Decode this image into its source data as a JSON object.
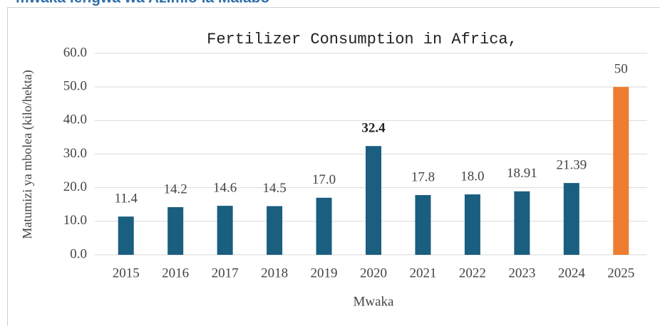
{
  "header": "mwaka lengwa wa Azimio la Malabo",
  "chart_data": {
    "type": "bar",
    "title": "Fertilizer Consumption in Africa,",
    "x_label": "Mwaka",
    "y_label": "Matumizi ya mbolea (kilo/hekta)",
    "categories": [
      "2015",
      "2016",
      "2017",
      "2018",
      "2019",
      "2020",
      "2021",
      "2022",
      "2023",
      "2024",
      "2025"
    ],
    "values": [
      11.4,
      14.2,
      14.6,
      14.5,
      17.0,
      32.4,
      17.8,
      18.0,
      18.91,
      21.39,
      50
    ],
    "value_labels": [
      "11.4",
      "14.2",
      "14.6",
      "14.5",
      "17.0",
      "32.4",
      "17.8",
      "18.0",
      "18.91",
      "21.39",
      "50"
    ],
    "bold_labels": [
      false,
      false,
      false,
      false,
      false,
      true,
      false,
      false,
      false,
      false,
      false
    ],
    "colors": [
      "#1a5e80",
      "#1a5e80",
      "#1a5e80",
      "#1a5e80",
      "#1a5e80",
      "#1a5e80",
      "#1a5e80",
      "#1a5e80",
      "#1a5e80",
      "#1a5e80",
      "#ed7d31"
    ],
    "ylim": [
      0,
      60
    ],
    "yticks": [
      {
        "value": 0,
        "label": "0.0"
      },
      {
        "value": 10,
        "label": "10.0"
      },
      {
        "value": 20,
        "label": "20.0"
      },
      {
        "value": 30,
        "label": "30.0"
      },
      {
        "value": 40,
        "label": "40.0"
      },
      {
        "value": 50,
        "label": "50.0"
      },
      {
        "value": 60,
        "label": "60.0"
      }
    ],
    "grid": true
  }
}
